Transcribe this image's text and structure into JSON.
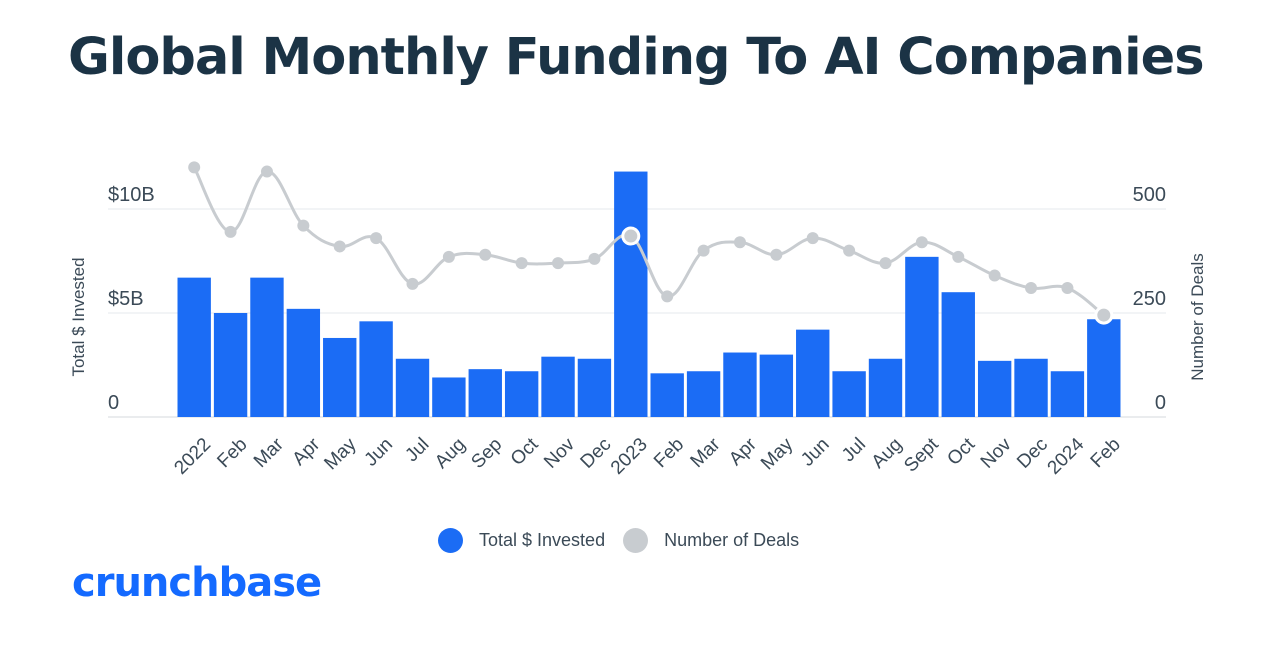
{
  "title": "Global Monthly Funding To AI Companies",
  "brand": "crunchbase",
  "colors": {
    "bars": "#1b6cf5",
    "line": "#c8ccd0",
    "title": "#1b3345",
    "brand": "#146aff"
  },
  "legend": {
    "invested": "Total $ Invested",
    "deals": "Number of Deals"
  },
  "chart_data": {
    "type": "bar",
    "categories": [
      "2022",
      "Feb",
      "Mar",
      "Apr",
      "May",
      "Jun",
      "Jul",
      "Aug",
      "Sep",
      "Oct",
      "Nov",
      "Dec",
      "2023",
      "Feb",
      "Mar",
      "Apr",
      "May",
      "Jun",
      "Jul",
      "Aug",
      "Sept",
      "Oct",
      "Nov",
      "Dec",
      "2024",
      "Feb"
    ],
    "series": [
      {
        "name": "Total $ Invested",
        "type": "bar",
        "axis": "left",
        "values": [
          6.7,
          5.0,
          6.7,
          5.2,
          3.8,
          4.6,
          2.8,
          1.9,
          2.3,
          2.2,
          2.9,
          2.8,
          11.8,
          2.1,
          2.2,
          3.1,
          3.0,
          4.2,
          2.2,
          2.8,
          7.7,
          6.0,
          2.7,
          2.8,
          2.2,
          4.7
        ]
      },
      {
        "name": "Number of Deals",
        "type": "line",
        "axis": "right",
        "values": [
          600,
          445,
          590,
          460,
          410,
          430,
          320,
          385,
          390,
          370,
          370,
          380,
          435,
          290,
          400,
          420,
          390,
          430,
          400,
          370,
          420,
          385,
          340,
          310,
          310,
          245
        ]
      }
    ],
    "y_left": {
      "label": "Total $ Invested",
      "ticks": [
        "0",
        "$5B",
        "$10B"
      ],
      "tick_values": [
        0,
        5,
        10
      ],
      "range": [
        0,
        10
      ]
    },
    "y_right": {
      "label": "Number of Deals",
      "ticks": [
        "0",
        "250",
        "500"
      ],
      "tick_values": [
        0,
        250,
        500
      ],
      "range": [
        0,
        500
      ]
    },
    "highlighted_points": [
      12,
      25
    ],
    "grid": true,
    "legend_position": "bottom-center"
  }
}
